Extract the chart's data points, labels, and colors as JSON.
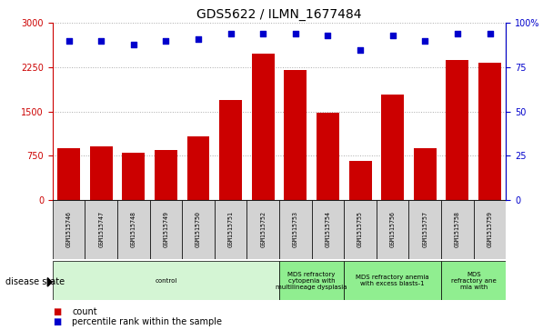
{
  "title": "GDS5622 / ILMN_1677484",
  "samples": [
    "GSM1515746",
    "GSM1515747",
    "GSM1515748",
    "GSM1515749",
    "GSM1515750",
    "GSM1515751",
    "GSM1515752",
    "GSM1515753",
    "GSM1515754",
    "GSM1515755",
    "GSM1515756",
    "GSM1515757",
    "GSM1515758",
    "GSM1515759"
  ],
  "counts": [
    870,
    900,
    790,
    840,
    1080,
    1700,
    2480,
    2210,
    1480,
    660,
    1780,
    870,
    2380,
    2320
  ],
  "percentiles": [
    90,
    90,
    88,
    90,
    91,
    94,
    94,
    94,
    93,
    85,
    93,
    90,
    94,
    94
  ],
  "bar_color": "#cc0000",
  "dot_color": "#0000cc",
  "ylim_left": [
    0,
    3000
  ],
  "ylim_right": [
    0,
    100
  ],
  "yticks_left": [
    0,
    750,
    1500,
    2250,
    3000
  ],
  "ytick_labels_left": [
    "0",
    "750",
    "1500",
    "2250",
    "3000"
  ],
  "yticks_right": [
    0,
    25,
    50,
    75,
    100
  ],
  "ytick_labels_right": [
    "0",
    "25",
    "50",
    "75",
    "100%"
  ],
  "disease_groups": [
    {
      "label": "control",
      "start": 0,
      "end": 7,
      "color": "#d4f5d4"
    },
    {
      "label": "MDS refractory\ncytopenia with\nmultilineage dysplasia",
      "start": 7,
      "end": 9,
      "color": "#90ee90"
    },
    {
      "label": "MDS refractory anemia\nwith excess blasts-1",
      "start": 9,
      "end": 12,
      "color": "#90ee90"
    },
    {
      "label": "MDS\nrefractory ane\nmia with",
      "start": 12,
      "end": 14,
      "color": "#90ee90"
    }
  ],
  "disease_state_label": "disease state",
  "legend_count_label": "count",
  "legend_percentile_label": "percentile rank within the sample",
  "grid_color": "#aaaaaa",
  "left_tick_color": "#cc0000",
  "right_tick_color": "#0000cc",
  "sample_box_color": "#d3d3d3"
}
